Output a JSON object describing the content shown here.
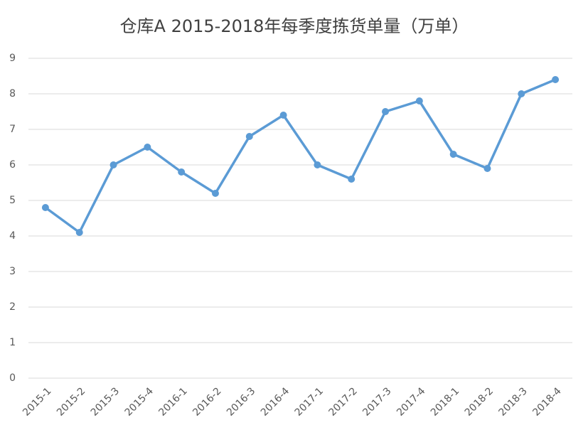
{
  "chart_data": {
    "type": "line",
    "title": "仓库A 2015-2018年每季度拣货单量（万单）",
    "categories": [
      "2015-1",
      "2015-2",
      "2015-3",
      "2015-4",
      "2016-1",
      "2016-2",
      "2016-3",
      "2016-4",
      "2017-1",
      "2017-2",
      "2017-3",
      "2017-4",
      "2018-1",
      "2018-2",
      "2018-3",
      "2018-4"
    ],
    "values": [
      4.8,
      4.1,
      6.0,
      6.5,
      5.8,
      5.2,
      6.8,
      7.4,
      6.0,
      5.6,
      7.5,
      7.8,
      6.3,
      5.9,
      8.0,
      8.4
    ],
    "color": "#5b9bd5",
    "ylim": [
      0,
      9
    ],
    "yticks": [
      0,
      1,
      2,
      3,
      4,
      5,
      6,
      7,
      8,
      9
    ],
    "grid": true
  }
}
